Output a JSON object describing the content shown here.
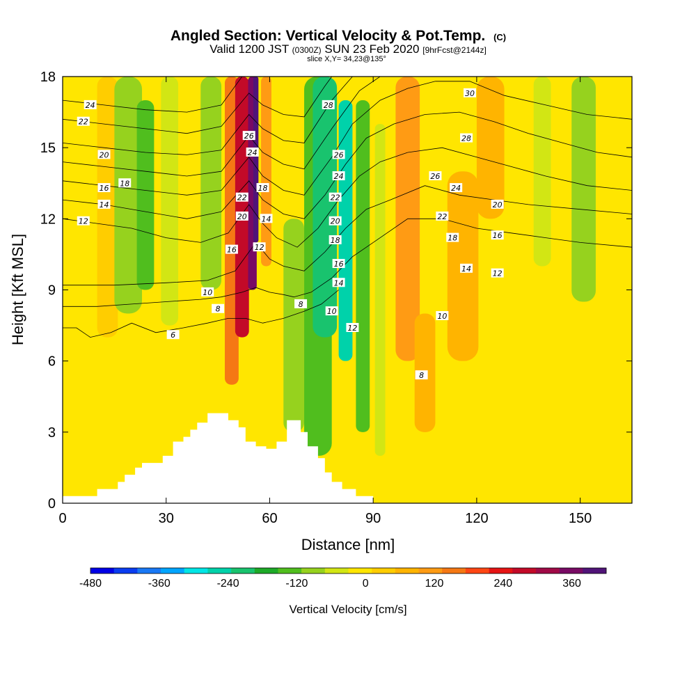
{
  "title": {
    "main": "Angled Section: Vertical Velocity & Pot.Temp.",
    "main_unit": "(C)",
    "valid_prefix": "Valid 1200 JST",
    "valid_z": "(0300Z)",
    "valid_date": "SUN 23 Feb 2020",
    "valid_fcst": "[9hrFcst@2144z]",
    "slice": "slice X,Y= 34,23@135°"
  },
  "chart_data": {
    "type": "heatmap",
    "xlabel": "Distance [nm]",
    "ylabel": "Height [Kft MSL]",
    "xlim": [
      0,
      165
    ],
    "ylim": [
      0,
      18
    ],
    "x_ticks": [
      0,
      30,
      60,
      90,
      120,
      150
    ],
    "y_ticks": [
      0,
      3,
      6,
      9,
      12,
      15,
      18
    ],
    "colorbar": {
      "label": "Vertical Velocity [cm/s]",
      "min": -480,
      "max": 420,
      "step": 40,
      "tick_values": [
        -480,
        -360,
        -240,
        -120,
        0,
        120,
        240,
        360
      ],
      "colors": [
        "#0000e6",
        "#0a3cf0",
        "#1978f5",
        "#00a5ff",
        "#00e6e6",
        "#00d2aa",
        "#19c36e",
        "#1eaa28",
        "#50be1e",
        "#96d21e",
        "#d2e614",
        "#ffe600",
        "#ffcd00",
        "#ffb400",
        "#ff9b14",
        "#f57814",
        "#ff4614",
        "#e61414",
        "#c30a28",
        "#a00a46",
        "#780a64",
        "#501478"
      ]
    },
    "velocity_bands": [
      {
        "x": 5,
        "w": 6,
        "ymin": 6.5,
        "ymax": 18,
        "value": -30
      },
      {
        "x": 13,
        "w": 6,
        "ymin": 7,
        "ymax": 18,
        "value": 30
      },
      {
        "x": 19,
        "w": 8,
        "ymin": 8,
        "ymax": 18,
        "value": -110
      },
      {
        "x": 24,
        "w": 5,
        "ymin": 9,
        "ymax": 17,
        "value": -150
      },
      {
        "x": 31,
        "w": 5,
        "ymin": 7.5,
        "ymax": 18,
        "value": -80
      },
      {
        "x": 43,
        "w": 6,
        "ymin": 9,
        "ymax": 18,
        "value": -90
      },
      {
        "x": 49,
        "w": 4,
        "ymin": 5,
        "ymax": 18,
        "value": 140
      },
      {
        "x": 52,
        "w": 4,
        "ymin": 7,
        "ymax": 18,
        "value": 250
      },
      {
        "x": 55,
        "w": 2.5,
        "ymin": 9,
        "ymax": 18,
        "value": 330
      },
      {
        "x": 56,
        "w": 1.5,
        "ymin": 11,
        "ymax": 18,
        "value": 400
      },
      {
        "x": 59,
        "w": 3,
        "ymin": 10,
        "ymax": 18,
        "value": 90
      },
      {
        "x": 67,
        "w": 6,
        "ymin": 3,
        "ymax": 12,
        "value": -110
      },
      {
        "x": 74,
        "w": 8,
        "ymin": 2,
        "ymax": 18,
        "value": -150
      },
      {
        "x": 76,
        "w": 7,
        "ymin": 7,
        "ymax": 18,
        "value": -230
      },
      {
        "x": 82,
        "w": 4,
        "ymin": 6,
        "ymax": 17,
        "value": -250
      },
      {
        "x": 87,
        "w": 4,
        "ymin": 3,
        "ymax": 17,
        "value": -130
      },
      {
        "x": 92,
        "w": 3,
        "ymin": 2,
        "ymax": 16,
        "value": -70
      },
      {
        "x": 100,
        "w": 7,
        "ymin": 6,
        "ymax": 18,
        "value": 110
      },
      {
        "x": 105,
        "w": 6,
        "ymin": 3,
        "ymax": 8,
        "value": 70
      },
      {
        "x": 116,
        "w": 9,
        "ymin": 6,
        "ymax": 14,
        "value": 60
      },
      {
        "x": 124,
        "w": 8,
        "ymin": 12,
        "ymax": 18,
        "value": 70
      },
      {
        "x": 132,
        "w": 5,
        "ymin": 9,
        "ymax": 18,
        "value": -20
      },
      {
        "x": 139,
        "w": 5,
        "ymin": 10,
        "ymax": 18,
        "value": -60
      },
      {
        "x": 151,
        "w": 7,
        "ymin": 8.5,
        "ymax": 18,
        "value": -90
      }
    ],
    "terrain": [
      [
        0,
        0.3
      ],
      [
        10,
        0.3
      ],
      [
        10,
        0.6
      ],
      [
        16,
        0.6
      ],
      [
        16,
        0.9
      ],
      [
        18,
        0.9
      ],
      [
        18,
        1.2
      ],
      [
        21,
        1.2
      ],
      [
        21,
        1.5
      ],
      [
        23,
        1.5
      ],
      [
        23,
        1.7
      ],
      [
        29,
        1.7
      ],
      [
        29,
        2.0
      ],
      [
        32,
        2.0
      ],
      [
        32,
        2.6
      ],
      [
        35,
        2.6
      ],
      [
        35,
        2.8
      ],
      [
        37,
        2.8
      ],
      [
        37,
        3.1
      ],
      [
        39,
        3.1
      ],
      [
        39,
        3.4
      ],
      [
        42,
        3.4
      ],
      [
        42,
        3.8
      ],
      [
        48,
        3.8
      ],
      [
        48,
        3.5
      ],
      [
        51,
        3.5
      ],
      [
        51,
        3.2
      ],
      [
        53,
        3.2
      ],
      [
        53,
        2.6
      ],
      [
        56,
        2.6
      ],
      [
        56,
        2.4
      ],
      [
        59,
        2.4
      ],
      [
        59,
        2.3
      ],
      [
        62,
        2.3
      ],
      [
        62,
        2.6
      ],
      [
        65,
        2.6
      ],
      [
        65,
        3.5
      ],
      [
        69,
        3.5
      ],
      [
        69,
        3.0
      ],
      [
        71,
        3.0
      ],
      [
        71,
        2.4
      ],
      [
        74,
        2.4
      ],
      [
        74,
        1.9
      ],
      [
        76,
        1.9
      ],
      [
        76,
        1.3
      ],
      [
        78,
        1.3
      ],
      [
        78,
        0.9
      ],
      [
        81,
        0.9
      ],
      [
        81,
        0.6
      ],
      [
        85,
        0.6
      ],
      [
        85,
        0.3
      ],
      [
        90,
        0.3
      ],
      [
        90,
        0
      ]
    ],
    "theta_contours": [
      {
        "value": 6,
        "points": [
          [
            0,
            7.4
          ],
          [
            4,
            7.4
          ],
          [
            8,
            7.0
          ],
          [
            14,
            7.2
          ],
          [
            20,
            7.6
          ],
          [
            27,
            7.2
          ],
          [
            35,
            7.4
          ],
          [
            42,
            7.6
          ],
          [
            48,
            7.8
          ],
          [
            53,
            7.8
          ],
          [
            58,
            7.6
          ],
          [
            64,
            7.8
          ],
          [
            68,
            8.0
          ],
          [
            70,
            8.1
          ],
          [
            75,
            8.4
          ],
          [
            80,
            9.0
          ]
        ]
      },
      {
        "value": 8,
        "points": [
          [
            0,
            8.3
          ],
          [
            10,
            8.3
          ],
          [
            20,
            8.4
          ],
          [
            30,
            8.5
          ],
          [
            40,
            8.6
          ],
          [
            46,
            8.7
          ],
          [
            52,
            8.9
          ],
          [
            56,
            9.1
          ],
          [
            60,
            8.9
          ],
          [
            64,
            8.8
          ],
          [
            67,
            8.7
          ],
          [
            72,
            8.9
          ],
          [
            78,
            9.5
          ],
          [
            84,
            10.4
          ],
          [
            90,
            11.0
          ]
        ]
      },
      {
        "value": 10,
        "points": [
          [
            0,
            9.2
          ],
          [
            15,
            9.2
          ],
          [
            30,
            9.3
          ],
          [
            42,
            9.4
          ],
          [
            50,
            9.8
          ],
          [
            56,
            11.0
          ],
          [
            60,
            10.3
          ],
          [
            64,
            10.0
          ],
          [
            70,
            9.8
          ],
          [
            76,
            10.6
          ],
          [
            82,
            11.6
          ],
          [
            88,
            12.4
          ],
          [
            95,
            12.8
          ]
        ]
      },
      {
        "value": 12,
        "points": [
          [
            0,
            12.0
          ],
          [
            10,
            11.8
          ],
          [
            20,
            11.6
          ],
          [
            30,
            11.2
          ],
          [
            40,
            11.0
          ],
          [
            48,
            11.4
          ],
          [
            54,
            12.6
          ],
          [
            58,
            11.8
          ],
          [
            62,
            11.2
          ],
          [
            68,
            10.8
          ],
          [
            74,
            11.6
          ],
          [
            80,
            12.8
          ],
          [
            86,
            13.8
          ],
          [
            92,
            14.4
          ],
          [
            100,
            14.8
          ]
        ]
      },
      {
        "value": 14,
        "points": [
          [
            0,
            12.8
          ],
          [
            12,
            12.6
          ],
          [
            24,
            12.3
          ],
          [
            36,
            12.0
          ],
          [
            46,
            12.3
          ],
          [
            54,
            13.6
          ],
          [
            58,
            12.8
          ],
          [
            64,
            12.2
          ],
          [
            70,
            12.0
          ],
          [
            76,
            13.0
          ],
          [
            82,
            14.3
          ],
          [
            88,
            15.4
          ],
          [
            96,
            16.0
          ],
          [
            105,
            16.4
          ]
        ]
      },
      {
        "value": 16,
        "points": [
          [
            0,
            13.6
          ],
          [
            12,
            13.4
          ],
          [
            24,
            13.2
          ],
          [
            36,
            13.0
          ],
          [
            46,
            13.2
          ],
          [
            54,
            14.6
          ],
          [
            58,
            13.8
          ],
          [
            64,
            13.2
          ],
          [
            70,
            13.0
          ],
          [
            78,
            14.6
          ],
          [
            84,
            16.0
          ],
          [
            92,
            17.0
          ],
          [
            100,
            17.5
          ],
          [
            108,
            17.8
          ]
        ]
      },
      {
        "value": 18,
        "points": [
          [
            0,
            14.4
          ],
          [
            12,
            14.2
          ],
          [
            24,
            14.0
          ],
          [
            36,
            13.8
          ],
          [
            46,
            14.0
          ],
          [
            54,
            15.5
          ],
          [
            58,
            14.8
          ],
          [
            64,
            14.3
          ],
          [
            70,
            14.1
          ],
          [
            78,
            15.8
          ],
          [
            86,
            17.4
          ],
          [
            92,
            18.0
          ]
        ]
      },
      {
        "value": 20,
        "points": [
          [
            0,
            15.2
          ],
          [
            12,
            15.0
          ],
          [
            24,
            14.8
          ],
          [
            36,
            14.7
          ],
          [
            46,
            14.9
          ],
          [
            54,
            16.4
          ],
          [
            58,
            15.8
          ],
          [
            64,
            15.3
          ],
          [
            70,
            15.2
          ],
          [
            78,
            17.0
          ],
          [
            84,
            18.0
          ]
        ]
      },
      {
        "value": 22,
        "points": [
          [
            0,
            16.2
          ],
          [
            12,
            16.0
          ],
          [
            24,
            15.8
          ],
          [
            36,
            15.6
          ],
          [
            46,
            15.9
          ],
          [
            54,
            17.3
          ],
          [
            58,
            16.8
          ],
          [
            64,
            16.4
          ],
          [
            70,
            16.3
          ],
          [
            76,
            17.6
          ],
          [
            78,
            18.0
          ]
        ]
      },
      {
        "value": 24,
        "points": [
          [
            0,
            17.0
          ],
          [
            12,
            16.8
          ],
          [
            24,
            16.6
          ],
          [
            36,
            16.5
          ],
          [
            46,
            16.8
          ],
          [
            52,
            18.0
          ]
        ]
      },
      {
        "value": 8,
        "points": [
          [
            90,
            11.0
          ],
          [
            100,
            12.0
          ],
          [
            110,
            12.0
          ],
          [
            120,
            11.6
          ],
          [
            130,
            11.4
          ],
          [
            140,
            11.2
          ],
          [
            150,
            11.0
          ],
          [
            165,
            10.8
          ]
        ]
      },
      {
        "value": 10,
        "points": [
          [
            95,
            12.8
          ],
          [
            105,
            13.4
          ],
          [
            115,
            13.0
          ],
          [
            125,
            12.8
          ],
          [
            135,
            12.6
          ],
          [
            150,
            12.4
          ],
          [
            165,
            12.2
          ]
        ]
      },
      {
        "value": 12,
        "points": [
          [
            100,
            14.8
          ],
          [
            110,
            15.0
          ],
          [
            120,
            14.6
          ],
          [
            130,
            14.2
          ],
          [
            140,
            13.8
          ],
          [
            152,
            13.4
          ],
          [
            165,
            13.2
          ]
        ]
      },
      {
        "value": 14,
        "points": [
          [
            105,
            16.4
          ],
          [
            115,
            16.5
          ],
          [
            125,
            16.1
          ],
          [
            135,
            15.6
          ],
          [
            145,
            15.2
          ],
          [
            155,
            14.8
          ],
          [
            165,
            14.6
          ]
        ]
      },
      {
        "value": 16,
        "points": [
          [
            108,
            17.8
          ],
          [
            118,
            17.8
          ],
          [
            128,
            17.2
          ],
          [
            140,
            16.8
          ],
          [
            152,
            16.4
          ],
          [
            165,
            16.2
          ]
        ]
      }
    ],
    "theta_labels": [
      {
        "text": "24",
        "x": 8,
        "y": 16.8
      },
      {
        "text": "22",
        "x": 6,
        "y": 16.1
      },
      {
        "text": "20",
        "x": 12,
        "y": 14.7
      },
      {
        "text": "16",
        "x": 12,
        "y": 13.3
      },
      {
        "text": "18",
        "x": 18,
        "y": 13.5
      },
      {
        "text": "14",
        "x": 12,
        "y": 12.6
      },
      {
        "text": "12",
        "x": 6,
        "y": 11.9
      },
      {
        "text": "26",
        "x": 54,
        "y": 15.5
      },
      {
        "text": "24",
        "x": 55,
        "y": 14.8
      },
      {
        "text": "22",
        "x": 52,
        "y": 12.9
      },
      {
        "text": "18",
        "x": 58,
        "y": 13.3
      },
      {
        "text": "20",
        "x": 52,
        "y": 12.1
      },
      {
        "text": "14",
        "x": 59,
        "y": 12.0
      },
      {
        "text": "16",
        "x": 49,
        "y": 10.7
      },
      {
        "text": "12",
        "x": 57,
        "y": 10.8
      },
      {
        "text": "10",
        "x": 42,
        "y": 8.9
      },
      {
        "text": "8",
        "x": 45,
        "y": 8.2
      },
      {
        "text": "6",
        "x": 32,
        "y": 7.1
      },
      {
        "text": "28",
        "x": 77,
        "y": 16.8
      },
      {
        "text": "26",
        "x": 80,
        "y": 14.7
      },
      {
        "text": "24",
        "x": 80,
        "y": 13.8
      },
      {
        "text": "22",
        "x": 79,
        "y": 12.9
      },
      {
        "text": "20",
        "x": 79,
        "y": 11.9
      },
      {
        "text": "18",
        "x": 79,
        "y": 11.1
      },
      {
        "text": "16",
        "x": 80,
        "y": 10.1
      },
      {
        "text": "14",
        "x": 80,
        "y": 9.3
      },
      {
        "text": "10",
        "x": 78,
        "y": 8.1
      },
      {
        "text": "12",
        "x": 84,
        "y": 7.4
      },
      {
        "text": "8",
        "x": 69,
        "y": 8.4
      },
      {
        "text": "8",
        "x": 104,
        "y": 5.4
      },
      {
        "text": "30",
        "x": 118,
        "y": 17.3
      },
      {
        "text": "28",
        "x": 117,
        "y": 15.4
      },
      {
        "text": "26",
        "x": 108,
        "y": 13.8
      },
      {
        "text": "24",
        "x": 114,
        "y": 13.3
      },
      {
        "text": "22",
        "x": 110,
        "y": 12.1
      },
      {
        "text": "20",
        "x": 126,
        "y": 12.6
      },
      {
        "text": "18",
        "x": 113,
        "y": 11.2
      },
      {
        "text": "16",
        "x": 126,
        "y": 11.3
      },
      {
        "text": "14",
        "x": 117,
        "y": 9.9
      },
      {
        "text": "12",
        "x": 126,
        "y": 9.7
      },
      {
        "text": "10",
        "x": 110,
        "y": 7.9
      }
    ]
  }
}
